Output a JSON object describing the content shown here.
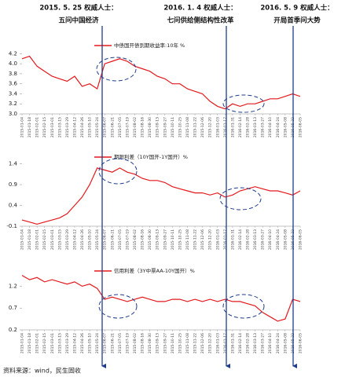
{
  "annotations": [
    {
      "date": "2015. 5. 25 权威人士：",
      "text": "五问中国经济"
    },
    {
      "date": "2016. 1. 4 权威人士：",
      "text": "七问供给侧结构性改革"
    },
    {
      "date": "2016. 5. 9 权威人士：",
      "text": "开局首季问大势"
    }
  ],
  "source": "资料来源：wind，民生固收",
  "chart_data": [
    {
      "type": "line",
      "x": [
        "2015-01-04",
        "2015-01-18",
        "2015-02-01",
        "2015-02-15",
        "2015-03-01",
        "2015-03-15",
        "2015-03-29",
        "2015-04-12",
        "2015-04-26",
        "2015-05-10",
        "2015-05-24",
        "2015-06-07",
        "2015-06-21",
        "2015-07-05",
        "2015-07-19",
        "2015-08-02",
        "2015-08-16",
        "2015-08-30",
        "2015-09-13",
        "2015-09-27",
        "2015-10-11",
        "2015-10-25",
        "2015-11-08",
        "2015-11-22",
        "2015-12-06",
        "2015-12-20",
        "2016-01-03",
        "2016-01-17",
        "2016-01-31",
        "2016-02-14",
        "2016-02-28",
        "2016-03-13",
        "2016-03-27",
        "2016-04-10",
        "2016-04-24",
        "2016-05-08",
        "2016-05-22",
        "2016-06-05"
      ],
      "series": [
        {
          "name": "中债国开债到期收益率:10年 %",
          "color": "#e3191c",
          "values": [
            4.1,
            4.15,
            3.95,
            3.85,
            3.75,
            3.7,
            3.65,
            3.75,
            3.55,
            3.6,
            3.5,
            4.0,
            4.05,
            4.1,
            4.05,
            3.95,
            3.9,
            3.85,
            3.75,
            3.7,
            3.6,
            3.6,
            3.5,
            3.45,
            3.4,
            3.25,
            3.15,
            3.1,
            3.2,
            3.15,
            3.2,
            3.2,
            3.25,
            3.3,
            3.3,
            3.35,
            3.4,
            3.35
          ]
        }
      ],
      "ylim": [
        3.0,
        4.3
      ],
      "yticks": [
        {
          "value": 3,
          "label": "3.0"
        },
        3.2,
        3.4,
        3.6,
        3.8,
        {
          "value": 4,
          "label": "4.0"
        },
        4.2
      ]
    },
    {
      "type": "line",
      "x": [
        "2015-01-04",
        "2015-01-18",
        "2015-02-01",
        "2015-02-15",
        "2015-03-01",
        "2015-03-15",
        "2015-03-29",
        "2015-04-12",
        "2015-04-26",
        "2015-05-10",
        "2015-05-24",
        "2015-06-07",
        "2015-06-21",
        "2015-07-05",
        "2015-07-19",
        "2015-08-02",
        "2015-08-16",
        "2015-08-30",
        "2015-09-13",
        "2015-09-27",
        "2015-10-11",
        "2015-10-25",
        "2015-11-08",
        "2015-11-22",
        "2015-12-06",
        "2015-12-20",
        "2016-01-03",
        "2016-01-17",
        "2016-01-31",
        "2016-02-14",
        "2016-02-28",
        "2016-03-13",
        "2016-03-27",
        "2016-04-10",
        "2016-04-24",
        "2016-05-08",
        "2016-05-22",
        "2016-06-05"
      ],
      "series": [
        {
          "name": "期限利差（10Y国开-1Y国开）%",
          "color": "#e3191c",
          "values": [
            0.05,
            0.0,
            -0.05,
            0.0,
            0.05,
            0.1,
            0.2,
            0.4,
            0.6,
            0.9,
            1.3,
            1.25,
            1.2,
            1.3,
            1.2,
            1.15,
            1.05,
            1.0,
            1.0,
            0.95,
            0.85,
            0.8,
            0.75,
            0.7,
            0.7,
            0.65,
            0.7,
            0.6,
            0.65,
            0.75,
            0.8,
            0.85,
            0.8,
            0.75,
            0.75,
            0.7,
            0.65,
            0.75
          ]
        }
      ],
      "ylim": [
        -0.1,
        1.6
      ],
      "yticks": [
        -0.1,
        0.4,
        0.9,
        1.4
      ]
    },
    {
      "type": "line",
      "x": [
        "2015-01-04",
        "2015-01-18",
        "2015-02-01",
        "2015-02-15",
        "2015-03-01",
        "2015-03-15",
        "2015-03-29",
        "2015-04-12",
        "2015-04-26",
        "2015-05-10",
        "2015-05-24",
        "2015-06-07",
        "2015-06-21",
        "2015-07-05",
        "2015-07-19",
        "2015-08-02",
        "2015-08-16",
        "2015-08-30",
        "2015-09-13",
        "2015-09-27",
        "2015-10-11",
        "2015-10-25",
        "2015-11-08",
        "2015-11-22",
        "2015-12-06",
        "2015-12-20",
        "2016-01-03",
        "2016-01-17",
        "2016-01-31",
        "2016-02-14",
        "2016-02-28",
        "2016-03-13",
        "2016-03-27",
        "2016-04-10",
        "2016-04-24",
        "2016-05-08",
        "2016-05-22",
        "2016-06-05"
      ],
      "series": [
        {
          "name": "信用利差（3Y中票AA-10Y国开）%",
          "color": "#e3191c",
          "values": [
            1.45,
            1.35,
            1.4,
            1.3,
            1.35,
            1.3,
            1.25,
            1.3,
            1.2,
            1.25,
            1.15,
            0.9,
            0.95,
            0.9,
            0.85,
            0.9,
            0.95,
            0.9,
            0.85,
            0.85,
            0.9,
            0.9,
            0.85,
            0.9,
            0.85,
            0.9,
            0.85,
            0.9,
            0.85,
            0.85,
            0.8,
            0.75,
            0.6,
            0.5,
            0.4,
            0.45,
            0.9,
            0.85
          ]
        }
      ],
      "ylim": [
        0.2,
        1.55
      ],
      "yticks": [
        0.2,
        0.7,
        1.2
      ]
    }
  ]
}
